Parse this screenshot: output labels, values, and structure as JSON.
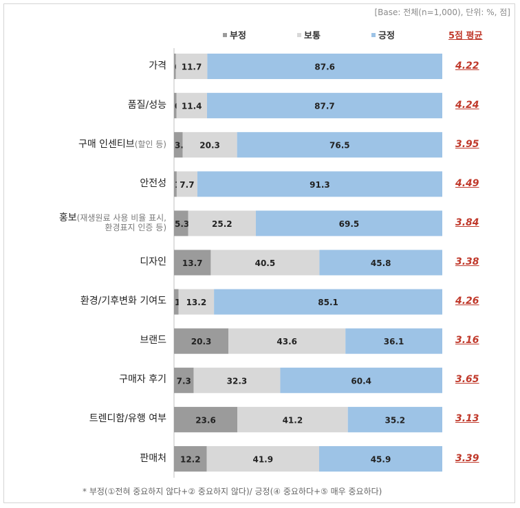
{
  "base_note": "[Base: 전체(n=1,000), 단위: %, 점]",
  "avg_header": "5점 평균",
  "footnote": "* 부정(①전혀 중요하지 않다+② 중요하지 않다)/ 긍정(④ 중요하다+⑤ 매우 중요하다)",
  "colors": {
    "negative": "#9b9b9b",
    "neutral": "#d8d8d8",
    "positive": "#9dc3e6",
    "avg": "#c0392b"
  },
  "chart_data": {
    "type": "bar",
    "orientation": "horizontal",
    "stacked": true,
    "xlim": [
      0,
      100
    ],
    "legend_position": "top",
    "categories": [
      {
        "label": "가격",
        "note": ""
      },
      {
        "label": "품질/성능",
        "note": ""
      },
      {
        "label": "구매 인센티브",
        "note": "(할인 등)"
      },
      {
        "label": "안전성",
        "note": ""
      },
      {
        "label": "홍보",
        "note": "(재생원료 사용 비율 표시,",
        "note2": "환경표지 인증 등)"
      },
      {
        "label": "디자인",
        "note": ""
      },
      {
        "label": "환경/기후변화 기여도",
        "note": ""
      },
      {
        "label": "브랜드",
        "note": ""
      },
      {
        "label": "구매자 후기",
        "note": ""
      },
      {
        "label": "트렌디함/유행 여부",
        "note": ""
      },
      {
        "label": "판매처",
        "note": ""
      }
    ],
    "series": [
      {
        "name": "부정",
        "values": [
          0.7,
          0.9,
          3.2,
          1.0,
          5.3,
          13.7,
          1.7,
          20.3,
          7.3,
          23.6,
          12.2
        ]
      },
      {
        "name": "보통",
        "values": [
          11.7,
          11.4,
          20.3,
          7.7,
          25.2,
          40.5,
          13.2,
          43.6,
          32.3,
          41.2,
          41.9
        ]
      },
      {
        "name": "긍정",
        "values": [
          87.6,
          87.7,
          76.5,
          91.3,
          69.5,
          45.8,
          85.1,
          36.1,
          60.4,
          35.2,
          45.9
        ]
      }
    ],
    "averages": [
      "4.22",
      "4.24",
      "3.95",
      "4.49",
      "3.84",
      "3.38",
      "4.26",
      "3.16",
      "3.65",
      "3.13",
      "3.39"
    ]
  }
}
